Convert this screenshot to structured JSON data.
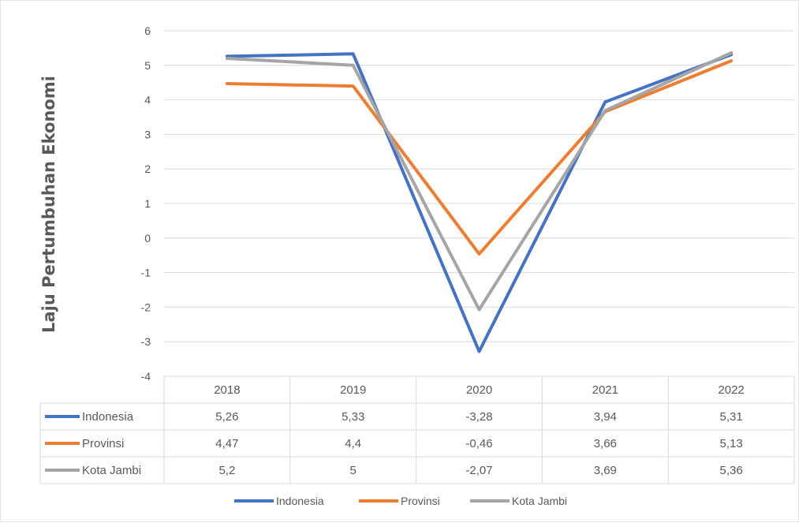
{
  "chart_data": {
    "type": "line",
    "title": "",
    "xlabel": "",
    "ylabel": "Laju Pertumbuhan Ekonomi",
    "ylim": [
      -4,
      6
    ],
    "yticks": [
      "6",
      "5",
      "4",
      "3",
      "2",
      "1",
      "0",
      "-1",
      "-2",
      "-3",
      "-4"
    ],
    "categories": [
      "2018",
      "2019",
      "2020",
      "2021",
      "2022"
    ],
    "series": [
      {
        "name": "Indonesia",
        "color": "#4472C4",
        "values": [
          5.26,
          5.33,
          -3.28,
          3.94,
          5.31
        ],
        "labels": [
          "5,26",
          "5,33",
          "-3,28",
          "3,94",
          "5,31"
        ]
      },
      {
        "name": "Provinsi",
        "color": "#ED7D31",
        "values": [
          4.47,
          4.4,
          -0.46,
          3.66,
          5.13
        ],
        "labels": [
          "4,47",
          "4,4",
          "-0,46",
          "3,66",
          "5,13"
        ]
      },
      {
        "name": "Kota Jambi",
        "color": "#A5A5A5",
        "values": [
          5.2,
          5,
          -2.07,
          3.69,
          5.36
        ],
        "labels": [
          "5,2",
          "5",
          "-2,07",
          "3,69",
          "5,36"
        ]
      }
    ],
    "grid": true,
    "legend_position": "bottom",
    "data_table": true
  }
}
